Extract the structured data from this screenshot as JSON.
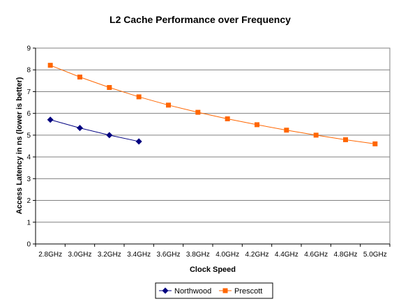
{
  "chart_data": {
    "type": "line",
    "title": "L2 Cache Performance over Frequency",
    "xlabel": "Clock Speed",
    "ylabel": "Access Latency in ns (lower is better)",
    "categories": [
      "2.8GHz",
      "3.0GHz",
      "3.2GHz",
      "3.4GHz",
      "3.6GHz",
      "3.8GHz",
      "4.0GHz",
      "4.2GHz",
      "4.4GHz",
      "4.6GHz",
      "4.8GHz",
      "5.0GHz"
    ],
    "y_ticks": [
      "0",
      "1",
      "2",
      "3",
      "4",
      "5",
      "6",
      "7",
      "8",
      "9"
    ],
    "ylim": [
      0,
      9
    ],
    "grid": true,
    "legend_position": "bottom",
    "series": [
      {
        "name": "Northwood",
        "color": "#000080",
        "marker": "diamond",
        "values": [
          5.71,
          5.33,
          5.0,
          4.71,
          null,
          null,
          null,
          null,
          null,
          null,
          null,
          null
        ]
      },
      {
        "name": "Prescott",
        "color": "#FF6600",
        "marker": "square",
        "values": [
          8.21,
          7.67,
          7.19,
          6.76,
          6.38,
          6.05,
          5.75,
          5.48,
          5.23,
          5.0,
          4.79,
          4.6
        ]
      }
    ]
  }
}
